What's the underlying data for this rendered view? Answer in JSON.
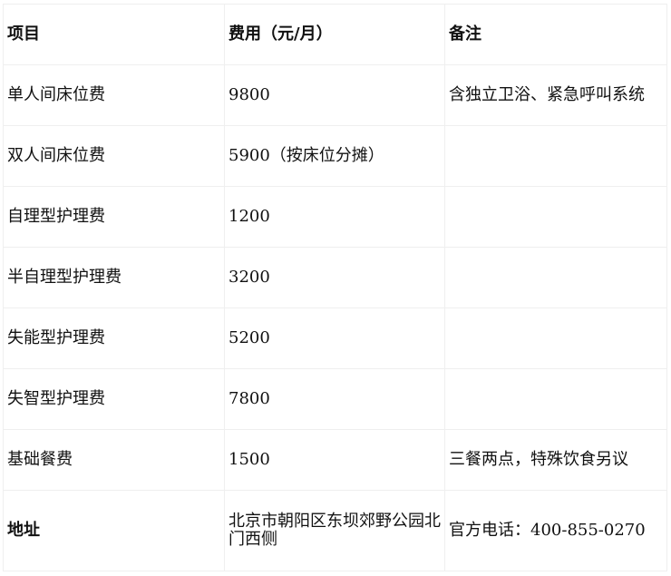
{
  "header": {
    "item": "项目",
    "cost": "费用（元/月）",
    "note": "备注"
  },
  "rows": [
    {
      "item": "单人间床位费",
      "cost": "9800",
      "note": "含独立卫浴、紧急呼叫系统"
    },
    {
      "item": "双人间床位费",
      "cost": "5900（按床位分摊）",
      "note": ""
    },
    {
      "item": "自理型护理费",
      "cost": "1200",
      "note": ""
    },
    {
      "item": "半自理型护理费",
      "cost": "3200",
      "note": ""
    },
    {
      "item": "失能型护理费",
      "cost": "5200",
      "note": ""
    },
    {
      "item": "失智型护理费",
      "cost": "7800",
      "note": ""
    },
    {
      "item": "基础餐费",
      "cost": "1500",
      "note": "三餐两点，特殊饮食另议"
    }
  ],
  "address": {
    "label": "地址",
    "value": "北京市朝阳区东坝郊野公园北门西侧",
    "phone": "官方电话：400-855-0270"
  }
}
